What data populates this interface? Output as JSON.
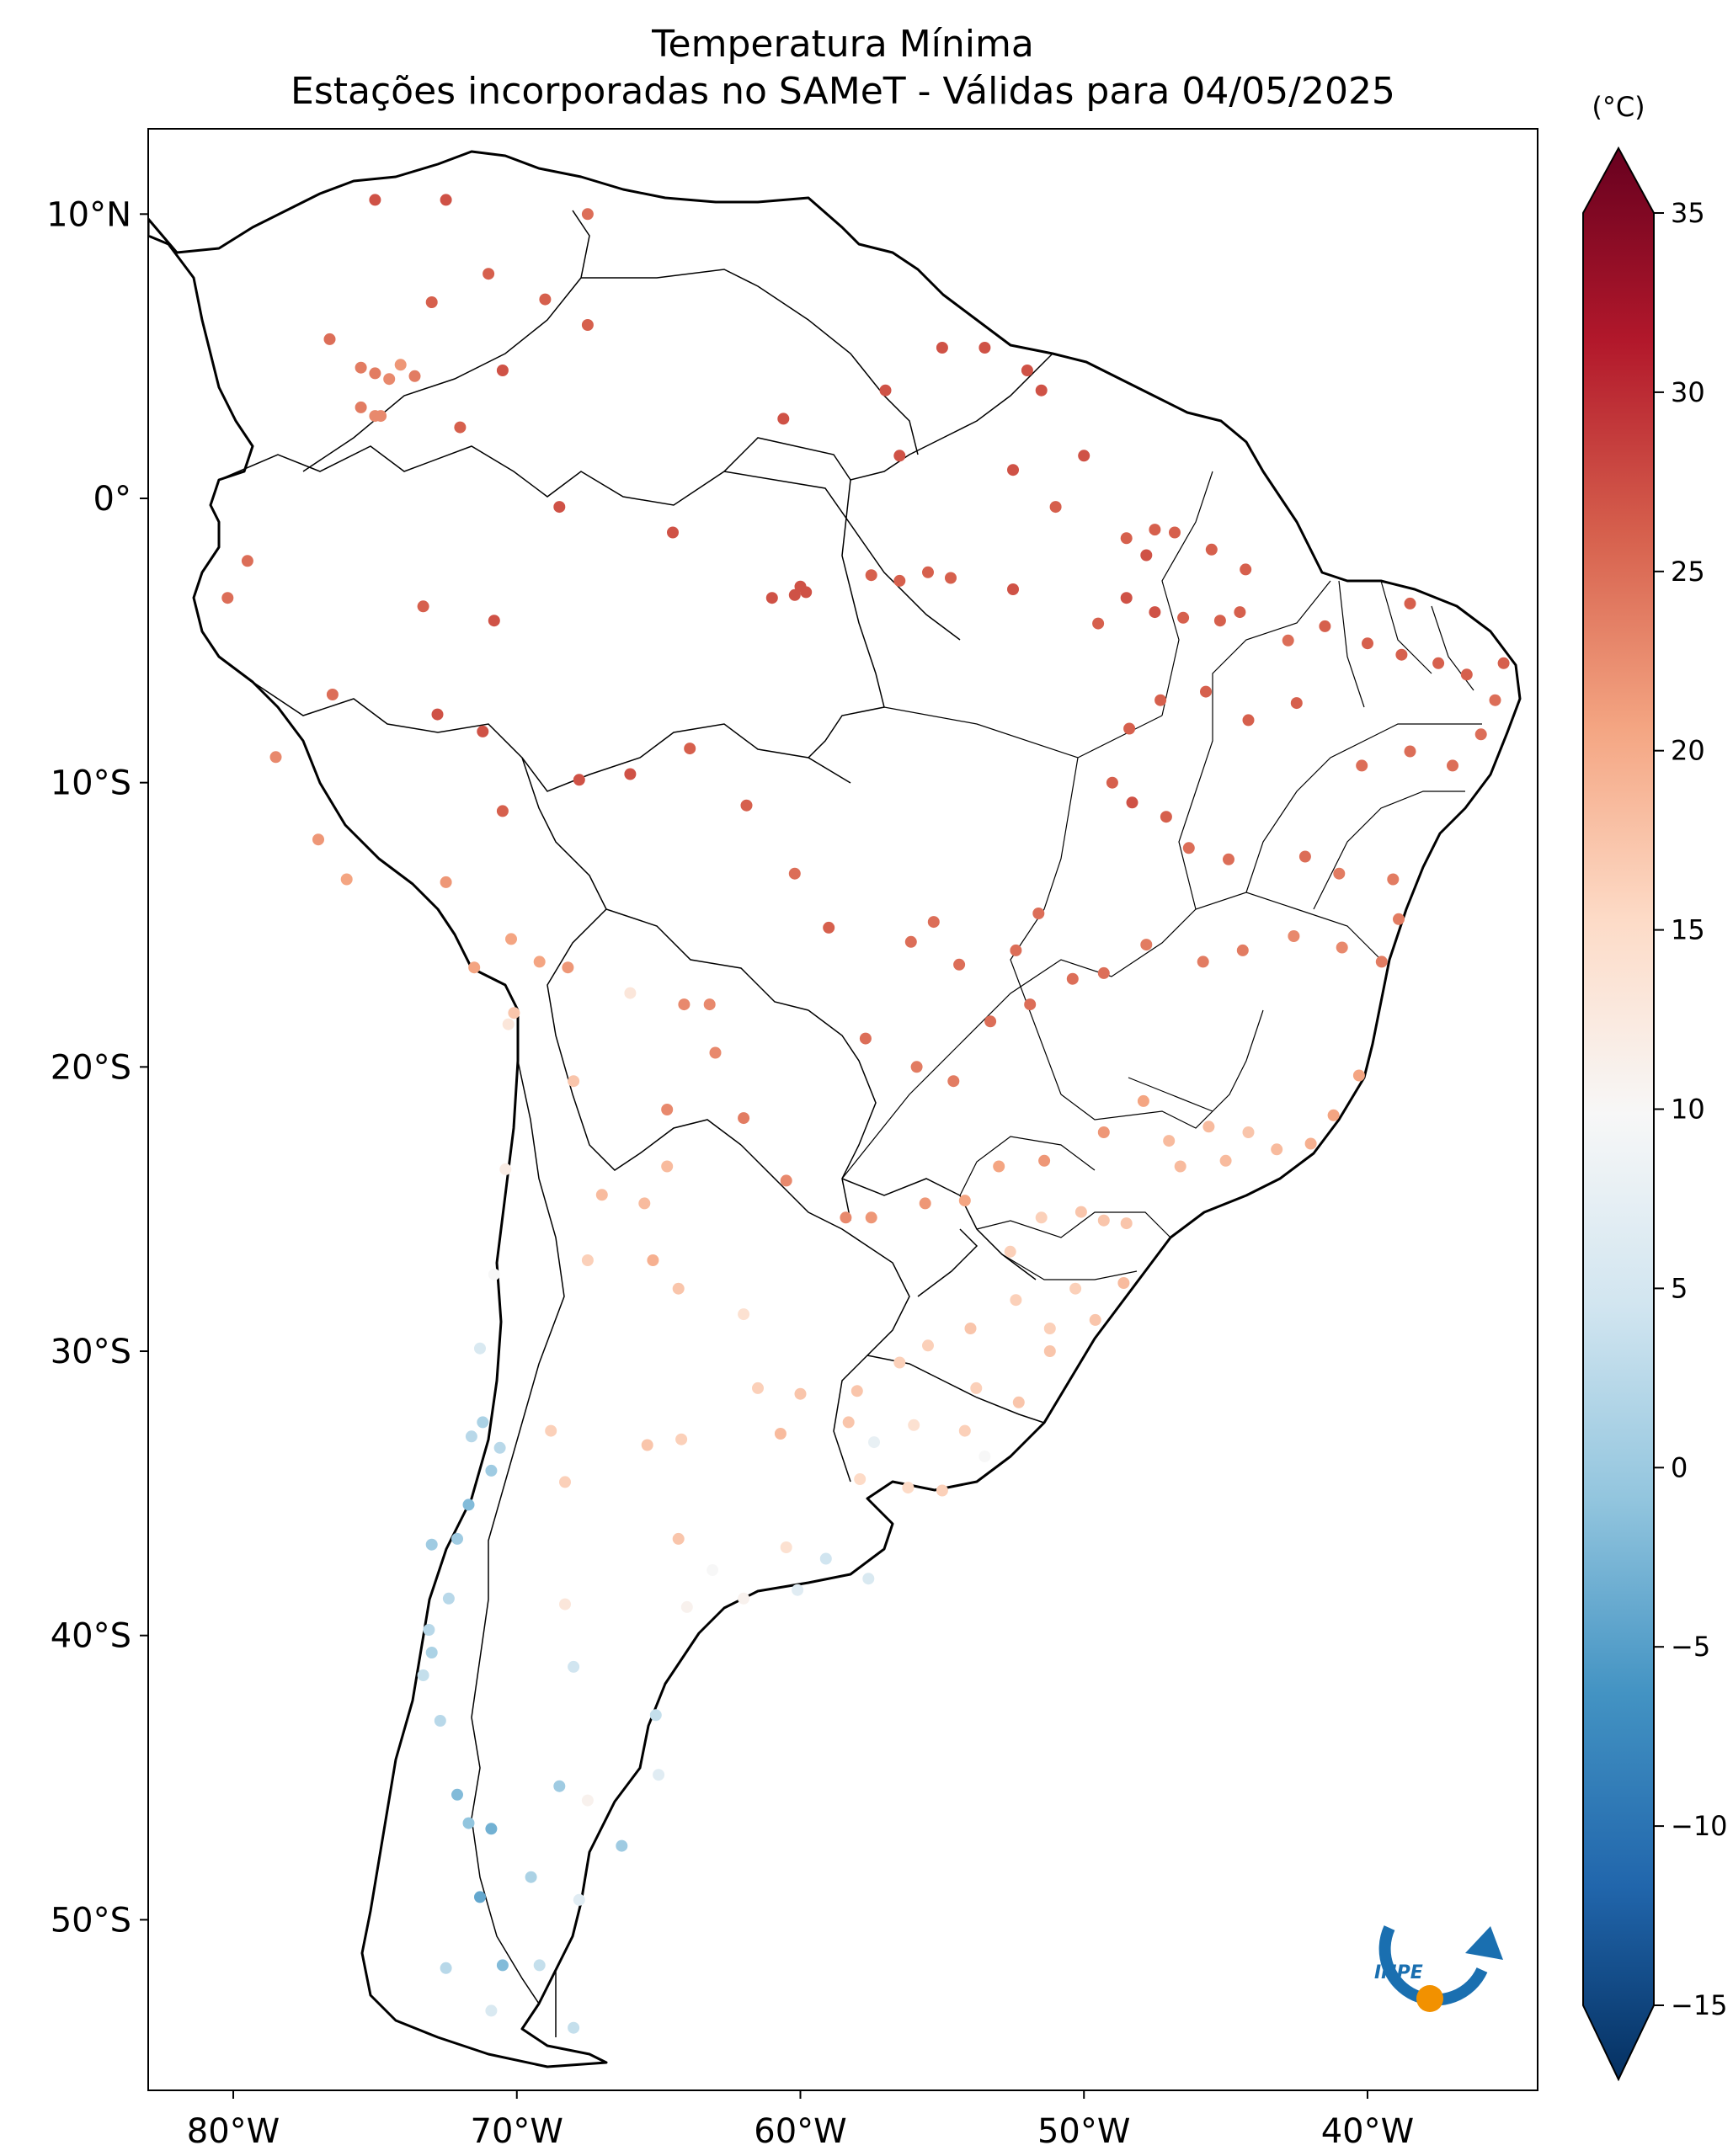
{
  "title": "Temperatura Mínima",
  "subtitle": "Estações incorporadas no SAMeT - Válidas para 04/05/2025",
  "colorbar": {
    "unit": "(°C)",
    "ticks": [
      "35",
      "30",
      "25",
      "20",
      "15",
      "10",
      "5",
      "0",
      "−5",
      "−10",
      "−15"
    ],
    "tick_values": [
      35,
      30,
      25,
      20,
      15,
      10,
      5,
      0,
      -5,
      -10,
      -15
    ],
    "range": [
      -15,
      35
    ],
    "colormap": "RdBu_r",
    "extend": "both"
  },
  "axes": {
    "lon_ticks": [
      "80°W",
      "70°W",
      "60°W",
      "50°W",
      "40°W"
    ],
    "lon_values": [
      -80,
      -70,
      -60,
      -50,
      -40
    ],
    "lat_ticks": [
      "10°N",
      "0°",
      "10°S",
      "20°S",
      "30°S",
      "40°S",
      "50°S"
    ],
    "lat_values": [
      10,
      0,
      -10,
      -20,
      -30,
      -40,
      -50
    ],
    "lon_range": [
      -83,
      -34
    ],
    "lat_range": [
      -56,
      13
    ]
  },
  "logo": {
    "text": "INPE",
    "colors": [
      "#1a6fb0",
      "#f29100"
    ]
  },
  "stations": [
    [
      -75,
      10.5,
      26
    ],
    [
      -72.5,
      10.5,
      26
    ],
    [
      -67.5,
      10,
      24
    ],
    [
      -71,
      7.9,
      25
    ],
    [
      -69,
      7,
      25
    ],
    [
      -73,
      6.9,
      25
    ],
    [
      -67.5,
      6.1,
      25
    ],
    [
      -76.6,
      5.6,
      24
    ],
    [
      -75.5,
      4.6,
      23
    ],
    [
      -75,
      4.4,
      23
    ],
    [
      -74.5,
      4.2,
      22
    ],
    [
      -74.1,
      4.7,
      21
    ],
    [
      -73.6,
      4.3,
      23
    ],
    [
      -70.5,
      4.5,
      26
    ],
    [
      -75.5,
      3.2,
      23
    ],
    [
      -75,
      2.9,
      22
    ],
    [
      -74.8,
      2.9,
      22
    ],
    [
      -72,
      2.5,
      25
    ],
    [
      -60.6,
      2.8,
      26
    ],
    [
      -55,
      5.3,
      26
    ],
    [
      -53.5,
      5.3,
      26
    ],
    [
      -57,
      3.8,
      26
    ],
    [
      -52,
      4.5,
      26
    ],
    [
      -51.5,
      3.8,
      26
    ],
    [
      -56.5,
      1.5,
      26
    ],
    [
      -52.5,
      1,
      26
    ],
    [
      -50,
      1.5,
      26
    ],
    [
      -51,
      -0.3,
      25
    ],
    [
      -48.5,
      -1.4,
      25
    ],
    [
      -47.5,
      -1.1,
      25
    ],
    [
      -46.8,
      -1.2,
      25
    ],
    [
      -47.8,
      -2,
      26
    ],
    [
      -45.5,
      -1.8,
      25
    ],
    [
      -44.3,
      -2.5,
      25
    ],
    [
      -68.5,
      -0.3,
      26
    ],
    [
      -64.5,
      -1.2,
      26
    ],
    [
      -60,
      -3.1,
      26
    ],
    [
      -59.8,
      -3.3,
      26
    ],
    [
      -61,
      -3.5,
      26
    ],
    [
      -60.2,
      -3.4,
      26
    ],
    [
      -57.5,
      -2.7,
      25
    ],
    [
      -55.5,
      -2.6,
      25
    ],
    [
      -54.7,
      -2.8,
      25
    ],
    [
      -56.5,
      -2.9,
      25
    ],
    [
      -52.5,
      -3.2,
      26
    ],
    [
      -48.5,
      -3.5,
      26
    ],
    [
      -47.5,
      -4,
      26
    ],
    [
      -49.5,
      -4.4,
      25
    ],
    [
      -46.5,
      -4.2,
      25
    ],
    [
      -45.2,
      -4.3,
      25
    ],
    [
      -44.5,
      -4,
      25
    ],
    [
      -42.8,
      -5,
      24
    ],
    [
      -41.5,
      -4.5,
      25
    ],
    [
      -40,
      -5.1,
      25
    ],
    [
      -38.5,
      -3.7,
      25
    ],
    [
      -38.8,
      -5.5,
      25
    ],
    [
      -37.5,
      -5.8,
      25
    ],
    [
      -36.5,
      -6.2,
      25
    ],
    [
      -35.2,
      -5.8,
      25
    ],
    [
      -35.5,
      -7.1,
      24
    ],
    [
      -36,
      -8.3,
      24
    ],
    [
      -37,
      -9.4,
      24
    ],
    [
      -38.5,
      -8.9,
      24
    ],
    [
      -40.2,
      -9.4,
      24
    ],
    [
      -42.5,
      -7.2,
      25
    ],
    [
      -44.2,
      -7.8,
      25
    ],
    [
      -45.7,
      -6.8,
      25
    ],
    [
      -47.3,
      -7.1,
      25
    ],
    [
      -48.4,
      -8.1,
      25
    ],
    [
      -49,
      -10,
      25
    ],
    [
      -48.3,
      -10.7,
      26
    ],
    [
      -47.1,
      -11.2,
      25
    ],
    [
      -46.3,
      -12.3,
      24
    ],
    [
      -44.9,
      -12.7,
      24
    ],
    [
      -42.2,
      -12.6,
      24
    ],
    [
      -41,
      -13.2,
      23
    ],
    [
      -39.1,
      -13.4,
      23
    ],
    [
      -38.9,
      -14.8,
      23
    ],
    [
      -39.5,
      -16.3,
      23
    ],
    [
      -40.9,
      -15.8,
      22
    ],
    [
      -42.6,
      -15.4,
      22
    ],
    [
      -44.4,
      -15.9,
      23
    ],
    [
      -45.8,
      -16.3,
      23
    ],
    [
      -47.8,
      -15.7,
      23
    ],
    [
      -49.3,
      -16.7,
      24
    ],
    [
      -50.4,
      -16.9,
      24
    ],
    [
      -51.9,
      -17.8,
      24
    ],
    [
      -53.3,
      -18.4,
      24
    ],
    [
      -54.6,
      -20.5,
      23
    ],
    [
      -55.9,
      -20,
      23
    ],
    [
      -57.7,
      -19,
      24
    ],
    [
      -56.1,
      -15.6,
      24
    ],
    [
      -55.3,
      -14.9,
      24
    ],
    [
      -54.4,
      -16.4,
      24
    ],
    [
      -52.4,
      -15.9,
      24
    ],
    [
      -51.6,
      -14.6,
      24
    ],
    [
      -59,
      -15.1,
      25
    ],
    [
      -60.2,
      -13.2,
      24
    ],
    [
      -61.9,
      -10.8,
      25
    ],
    [
      -63.9,
      -8.8,
      25
    ],
    [
      -66,
      -9.7,
      26
    ],
    [
      -67.8,
      -9.9,
      26
    ],
    [
      -70.5,
      -11,
      25
    ],
    [
      -72.8,
      -7.6,
      26
    ],
    [
      -71.2,
      -8.2,
      26
    ],
    [
      -70.8,
      -4.3,
      26
    ],
    [
      -73.3,
      -3.8,
      25
    ],
    [
      -79.5,
      -2.2,
      24
    ],
    [
      -80.2,
      -3.5,
      24
    ],
    [
      -76.5,
      -6.9,
      24
    ],
    [
      -78.5,
      -9.1,
      22
    ],
    [
      -77,
      -12,
      21
    ],
    [
      -76,
      -13.4,
      20
    ],
    [
      -72.5,
      -13.5,
      21
    ],
    [
      -71.5,
      -16.5,
      20
    ],
    [
      -70.2,
      -15.5,
      20
    ],
    [
      -69.2,
      -16.3,
      20
    ],
    [
      -68.2,
      -16.5,
      21
    ],
    [
      -70.1,
      -18.1,
      17
    ],
    [
      -68,
      -20.5,
      17
    ],
    [
      -66,
      -17.4,
      13
    ],
    [
      -64.1,
      -17.8,
      22
    ],
    [
      -63.2,
      -17.8,
      22
    ],
    [
      -63,
      -19.5,
      22
    ],
    [
      -64.7,
      -21.5,
      22
    ],
    [
      -62,
      -21.8,
      23
    ],
    [
      -60.5,
      -24,
      22
    ],
    [
      -58.4,
      -25.3,
      22
    ],
    [
      -57.5,
      -25.3,
      21
    ],
    [
      -55.6,
      -24.8,
      21
    ],
    [
      -54.2,
      -24.7,
      20
    ],
    [
      -53,
      -23.5,
      20
    ],
    [
      -51.4,
      -23.3,
      21
    ],
    [
      -49.3,
      -22.3,
      21
    ],
    [
      -47.9,
      -21.2,
      20
    ],
    [
      -47,
      -22.6,
      18
    ],
    [
      -45.6,
      -22.1,
      18
    ],
    [
      -44.2,
      -22.3,
      17
    ],
    [
      -43.2,
      -22.9,
      18
    ],
    [
      -42,
      -22.7,
      19
    ],
    [
      -41.2,
      -21.7,
      20
    ],
    [
      -40.3,
      -20.3,
      20
    ],
    [
      -46.6,
      -23.5,
      18
    ],
    [
      -45,
      -23.3,
      18
    ],
    [
      -48.5,
      -25.5,
      17
    ],
    [
      -49.3,
      -25.4,
      17
    ],
    [
      -50.1,
      -25.1,
      17
    ],
    [
      -51.5,
      -25.3,
      16
    ],
    [
      -52.6,
      -26.5,
      16
    ],
    [
      -50.3,
      -27.8,
      16
    ],
    [
      -48.6,
      -27.6,
      18
    ],
    [
      -49.6,
      -28.9,
      17
    ],
    [
      -51.2,
      -29.2,
      16
    ],
    [
      -52.4,
      -28.2,
      16
    ],
    [
      -54,
      -29.2,
      17
    ],
    [
      -55.5,
      -29.8,
      16
    ],
    [
      -53.8,
      -31.3,
      16
    ],
    [
      -52.3,
      -31.8,
      17
    ],
    [
      -51.2,
      -30,
      17
    ],
    [
      -56.5,
      -30.4,
      16
    ],
    [
      -58,
      -31.4,
      17
    ],
    [
      -57.9,
      -34.5,
      15
    ],
    [
      -56.2,
      -34.8,
      15
    ],
    [
      -55,
      -34.9,
      16
    ],
    [
      -56,
      -32.6,
      14
    ],
    [
      -54.2,
      -32.8,
      16
    ],
    [
      -53.5,
      -33.7,
      10
    ],
    [
      -57.4,
      -33.2,
      8
    ],
    [
      -58.3,
      -32.5,
      17
    ],
    [
      -60.7,
      -32.9,
      18
    ],
    [
      -60,
      -31.5,
      17
    ],
    [
      -61.5,
      -31.3,
      16
    ],
    [
      -62,
      -28.7,
      14
    ],
    [
      -65.2,
      -26.8,
      19
    ],
    [
      -65.5,
      -24.8,
      18
    ],
    [
      -64.7,
      -23.5,
      18
    ],
    [
      -67,
      -24.5,
      18
    ],
    [
      -67.5,
      -26.8,
      16
    ],
    [
      -64.3,
      -27.8,
      17
    ],
    [
      -68.8,
      -32.8,
      16
    ],
    [
      -68.3,
      -34.6,
      16
    ],
    [
      -65.4,
      -33.3,
      17
    ],
    [
      -64.2,
      -33.1,
      16
    ],
    [
      -63.1,
      -37.7,
      10
    ],
    [
      -62,
      -38.7,
      11
    ],
    [
      -60.1,
      -38.4,
      7
    ],
    [
      -59.1,
      -37.3,
      5
    ],
    [
      -57.6,
      -38,
      6
    ],
    [
      -60.5,
      -36.9,
      14
    ],
    [
      -64.3,
      -36.6,
      17
    ],
    [
      -68.3,
      -38.9,
      13
    ],
    [
      -64,
      -39,
      11
    ],
    [
      -68,
      -41.1,
      5
    ],
    [
      -65.1,
      -42.8,
      4
    ],
    [
      -67.5,
      -45.8,
      11
    ],
    [
      -65,
      -44.9,
      7
    ],
    [
      -67.8,
      -49.3,
      7
    ],
    [
      -69.2,
      -51.6,
      4
    ],
    [
      -68,
      -53.8,
      4
    ],
    [
      -70.3,
      -18.5,
      13
    ],
    [
      -70.4,
      -23.6,
      12
    ],
    [
      -71.3,
      -29.9,
      6
    ],
    [
      -70.8,
      -27.3,
      10
    ],
    [
      -71.6,
      -33,
      3
    ],
    [
      -70.6,
      -33.4,
      3
    ],
    [
      -71.2,
      -32.5,
      2
    ],
    [
      -70.9,
      -34.2,
      1
    ],
    [
      -71.7,
      -35.4,
      -1
    ],
    [
      -72.1,
      -36.6,
      1
    ],
    [
      -73,
      -36.8,
      1
    ],
    [
      -72.4,
      -38.7,
      3
    ],
    [
      -73.1,
      -39.8,
      3
    ],
    [
      -73,
      -40.6,
      2
    ],
    [
      -73.3,
      -41.4,
      4
    ],
    [
      -72.7,
      -43,
      3
    ],
    [
      -72.1,
      -45.6,
      -1
    ],
    [
      -71.7,
      -46.6,
      0
    ],
    [
      -70.9,
      -46.8,
      -2
    ],
    [
      -72.5,
      -51.7,
      3
    ],
    [
      -70.9,
      -53.2,
      6
    ],
    [
      -71.3,
      -49.2,
      -3
    ],
    [
      -69.5,
      -48.5,
      2
    ],
    [
      -70.5,
      -51.6,
      -1
    ],
    [
      -66.3,
      -47.4,
      1
    ],
    [
      -68.5,
      -45.3,
      1
    ]
  ]
}
